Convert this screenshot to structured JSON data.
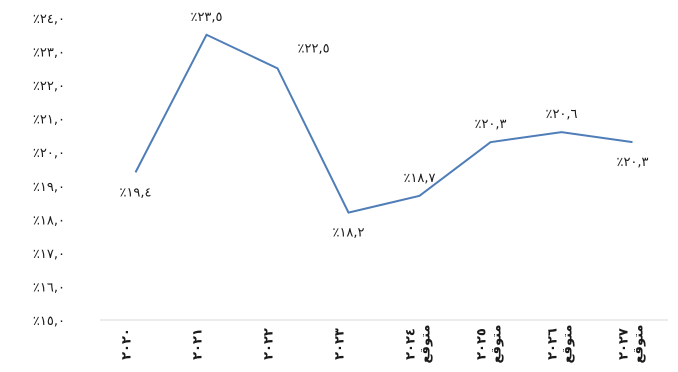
{
  "chart_data": {
    "type": "line",
    "title": "",
    "xlabel": "",
    "ylabel": "",
    "ylim": [
      15,
      24
    ],
    "y_ticks": [
      "٪١٥,٠",
      "٪١٦,٠",
      "٪١٧,٠",
      "٪١٨,٠",
      "٪١٩,٠",
      "٪٢٠,٠",
      "٪٢١,٠",
      "٪٢٢,٠",
      "٪٢٣,٠",
      "٪٢٤,٠"
    ],
    "grid": false,
    "legend": "none",
    "color": "#4f7db8",
    "categories": [
      {
        "year": "٢٠٢٠",
        "note": ""
      },
      {
        "year": "٢٠٢١",
        "note": ""
      },
      {
        "year": "٢٠٢٢",
        "note": ""
      },
      {
        "year": "٢٠٢٣",
        "note": ""
      },
      {
        "year": "٢٠٢٤",
        "note": "متوقع"
      },
      {
        "year": "٢٠٢٥",
        "note": "متوقع"
      },
      {
        "year": "٢٠٢٦",
        "note": "متوقع"
      },
      {
        "year": "٢٠٢٧",
        "note": "متوقع"
      }
    ],
    "values": [
      19.4,
      23.5,
      22.5,
      18.2,
      18.7,
      20.3,
      20.6,
      20.3
    ],
    "labels": [
      "٪١٩,٤",
      "٪٢٣,٥",
      "٪٢٢,٥",
      "٪١٨,٢",
      "٪١٨,٧",
      "٪٢٠,٣",
      "٪٢٠,٦",
      "٪٢٠,٣"
    ],
    "label_position": [
      "below",
      "above",
      "right",
      "below",
      "above",
      "above",
      "above",
      "below"
    ]
  }
}
